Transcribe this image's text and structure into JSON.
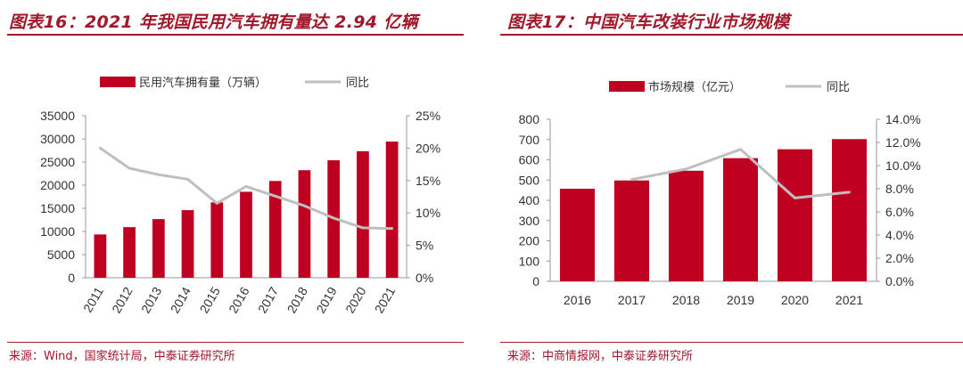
{
  "colors": {
    "accent": "#a0182a",
    "bar": "#c00020",
    "line": "#bfbfbf"
  },
  "panels": [
    {
      "title": "图表16：2021 年我国民用汽车拥有量达 2.94 亿辆",
      "source": "来源：Wind，国家统计局，中泰证券研究所"
    },
    {
      "title": "图表17：中国汽车改装行业市场规模",
      "source": "来源：中商情报网，中泰证券研究所"
    }
  ],
  "chart_data": [
    {
      "type": "bar",
      "categories": [
        "2011",
        "2012",
        "2013",
        "2014",
        "2015",
        "2016",
        "2017",
        "2018",
        "2019",
        "2020",
        "2021"
      ],
      "series": [
        {
          "name": "民用汽车拥有量（万辆）",
          "type": "bar",
          "axis": "left",
          "values": [
            9356,
            10933,
            12670,
            14598,
            16284,
            18575,
            20907,
            23231,
            25376,
            27340,
            29419
          ]
        },
        {
          "name": "同比",
          "type": "line",
          "axis": "right",
          "values": [
            0.2,
            0.169,
            0.159,
            0.152,
            0.115,
            0.141,
            0.126,
            0.111,
            0.092,
            0.077,
            0.076
          ]
        }
      ],
      "ylim_left": [
        0,
        35000
      ],
      "yticks_left": [
        "0",
        "5000",
        "10000",
        "15000",
        "20000",
        "25000",
        "30000",
        "35000"
      ],
      "ylim_right": [
        0,
        0.25
      ],
      "yticks_right": [
        "0%",
        "5%",
        "10%",
        "15%",
        "20%",
        "25%"
      ],
      "legend": "top",
      "grid": false,
      "xlabel_rotation": -60
    },
    {
      "type": "bar",
      "categories": [
        "2016",
        "2017",
        "2018",
        "2019",
        "2020",
        "2021"
      ],
      "series": [
        {
          "name": "市场规模（亿元）",
          "type": "bar",
          "axis": "left",
          "values": [
            457,
            498,
            546,
            608,
            652,
            702
          ]
        },
        {
          "name": "同比",
          "type": "line",
          "axis": "right",
          "values": [
            null,
            0.088,
            0.097,
            0.114,
            0.072,
            0.077
          ]
        }
      ],
      "ylim_left": [
        0,
        800
      ],
      "yticks_left": [
        "0",
        "100",
        "200",
        "300",
        "400",
        "500",
        "600",
        "700",
        "800"
      ],
      "ylim_right": [
        0,
        0.14
      ],
      "yticks_right": [
        "0.0%",
        "2.0%",
        "4.0%",
        "6.0%",
        "8.0%",
        "10.0%",
        "12.0%",
        "14.0%"
      ],
      "legend": "top",
      "grid": false,
      "xlabel_rotation": 0
    }
  ]
}
